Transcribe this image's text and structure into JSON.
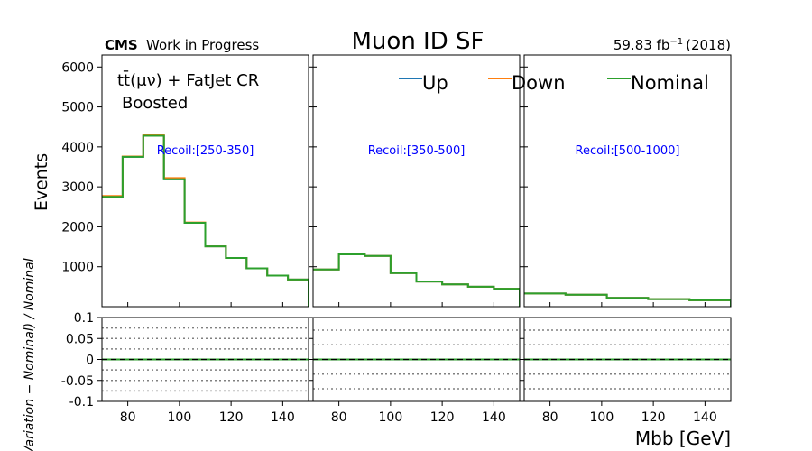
{
  "header": {
    "experiment": "CMS",
    "status": "Work in Progress",
    "title": "Muon ID SF",
    "lumi_value": "59.83 fb",
    "lumi_exp": "−1",
    "lumi_year": "(2018)"
  },
  "annotation": {
    "region_label": "tt̄(μν) + FatJet CR",
    "category_label": "Boosted"
  },
  "colors": {
    "up": "#1f77b4",
    "down": "#ff7f0e",
    "nominal": "#2ca02c",
    "title": "#ff0000",
    "recoil_text": "#0000ff"
  },
  "chart_data": {
    "type": "line",
    "drawstyle": "step",
    "ylabel": "Events",
    "ratio_ylabel": "(Variation − Nominal) / Nominal",
    "xlabel": "Mbb [GeV]",
    "xlim": [
      70,
      150
    ],
    "ylim": [
      0,
      6300
    ],
    "ratio_ylim": [
      -0.1,
      0.1
    ],
    "bin_edges": [
      70,
      78,
      88,
      98,
      110,
      125,
      135,
      150
    ],
    "x_ticks": [
      80,
      100,
      120,
      140
    ],
    "y_ticks": [
      1000,
      2000,
      3000,
      4000,
      5000,
      6000
    ],
    "ratio_ticks": [
      0.1,
      0.05,
      0,
      -0.05,
      -0.1
    ],
    "ratio_ticklabels": [
      "0.1",
      "0.05",
      "0",
      "-0.05",
      "-0.1"
    ],
    "legend": [
      "Up",
      "Down",
      "Nominal"
    ],
    "legend_position": "top",
    "panels": [
      {
        "label": "Recoil:[250-350]",
        "series": [
          {
            "name": "Up",
            "values": [
              2750,
              3750,
              4280,
              3190,
              2100,
              1510,
              1220,
              960,
              780,
              680
            ]
          },
          {
            "name": "Down",
            "values": [
              2770,
              3760,
              4290,
              3220,
              2110,
              1510,
              1220,
              960,
              780,
              680
            ]
          },
          {
            "name": "Nominal",
            "values": [
              2750,
              3750,
              4280,
              3190,
              2100,
              1510,
              1220,
              960,
              780,
              680
            ]
          }
        ],
        "ratio_dotted_lines": [
          0.075,
          0.05,
          0.025,
          -0.025,
          -0.05,
          -0.075
        ]
      },
      {
        "label": "Recoil:[350-500]",
        "series": [
          {
            "name": "Up",
            "values": [
              930,
              1310,
              1270,
              840,
              630,
              560,
              500,
              450
            ]
          },
          {
            "name": "Down",
            "values": [
              930,
              1310,
              1270,
              840,
              630,
              560,
              500,
              450
            ]
          },
          {
            "name": "Nominal",
            "values": [
              930,
              1310,
              1270,
              840,
              630,
              560,
              500,
              450
            ]
          }
        ],
        "ratio_dotted_lines": [
          0.07,
          0.035,
          -0.035,
          -0.07
        ]
      },
      {
        "label": "Recoil:[500-1000]",
        "series": [
          {
            "name": "Up",
            "values": [
              330,
              300,
              220,
              190,
              160
            ]
          },
          {
            "name": "Down",
            "values": [
              330,
              300,
              220,
              190,
              160
            ]
          },
          {
            "name": "Nominal",
            "values": [
              330,
              300,
              220,
              190,
              160
            ]
          }
        ],
        "ratio_dotted_lines": [
          0.07,
          0.035,
          -0.035,
          -0.07
        ]
      }
    ]
  }
}
